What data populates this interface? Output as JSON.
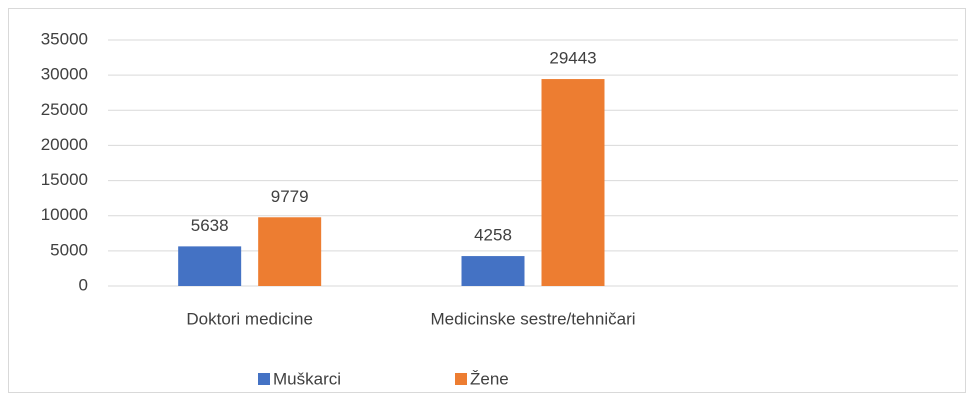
{
  "chart_data": {
    "type": "bar",
    "categories": [
      "Doktori medicine",
      "Medicinske sestre/tehničari",
      null
    ],
    "series": [
      {
        "name": "Muškarci",
        "color": "#4472c4",
        "values": [
          5638,
          4258,
          null
        ]
      },
      {
        "name": "Žene",
        "color": "#ed7d31",
        "values": [
          9779,
          29443,
          null
        ]
      }
    ],
    "ylim": [
      0,
      35000
    ],
    "yticks": [
      0,
      5000,
      10000,
      15000,
      20000,
      25000,
      30000,
      35000
    ],
    "grid": true,
    "legend": "bottom",
    "data_labels": true
  }
}
